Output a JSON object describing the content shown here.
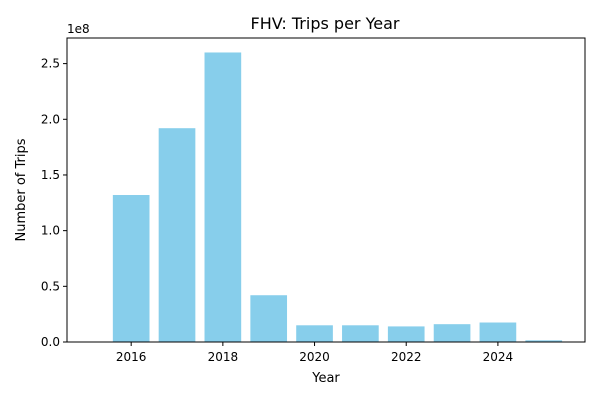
{
  "chart_data": {
    "type": "bar",
    "title": "FHV: Trips per Year",
    "xlabel": "Year",
    "ylabel": "Number of Trips",
    "y_offset_label": "1e8",
    "bar_color": "#87ceeb",
    "categories": [
      2016,
      2017,
      2018,
      2019,
      2020,
      2021,
      2022,
      2023,
      2024,
      2025
    ],
    "values": [
      132000000,
      192000000,
      260000000,
      42000000,
      15000000,
      15000000,
      14000000,
      16000000,
      17500000,
      1500000
    ],
    "xlim": [
      2014.6,
      2025.9
    ],
    "ylim": [
      0,
      273000000
    ],
    "x_ticks": [
      2016,
      2018,
      2020,
      2022,
      2024
    ],
    "x_tick_labels": [
      "2016",
      "2018",
      "2020",
      "2022",
      "2024"
    ],
    "y_ticks": [
      0,
      50000000,
      100000000,
      150000000,
      200000000,
      250000000
    ],
    "y_tick_labels": [
      "0.0",
      "0.5",
      "1.0",
      "1.5",
      "2.0",
      "2.5"
    ],
    "grid": false,
    "legend": "none"
  }
}
